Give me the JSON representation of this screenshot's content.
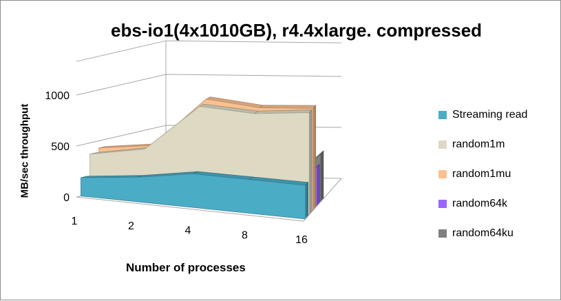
{
  "chart_data": {
    "type": "area",
    "title": "ebs-io1(4x1010GB), r4.4xlarge. compressed",
    "xlabel": "Number of processes",
    "ylabel": "MB/sec throughput",
    "categories": [
      "1",
      "2",
      "4",
      "8",
      "16"
    ],
    "y_ticks": [
      "0",
      "500",
      "1000"
    ],
    "ylim": [
      0,
      1000
    ],
    "legend_position": "right",
    "three_d": true,
    "series": [
      {
        "name": "Streaming read",
        "color": "#4BACC6",
        "values": [
          180,
          240,
          330,
          330,
          330
        ]
      },
      {
        "name": "random1m",
        "color": "#DDD9C3",
        "values": [
          390,
          490,
          960,
          940,
          1000
        ]
      },
      {
        "name": "random1mu",
        "color": "#FAC090",
        "values": [
          430,
          500,
          1000,
          960,
          1000
        ]
      },
      {
        "name": "random64k",
        "color": "#9966FF",
        "values": [
          0,
          0,
          0,
          0,
          380
        ]
      },
      {
        "name": "random64ku",
        "color": "#7F7F7F",
        "values": [
          0,
          0,
          0,
          0,
          470
        ]
      }
    ]
  }
}
